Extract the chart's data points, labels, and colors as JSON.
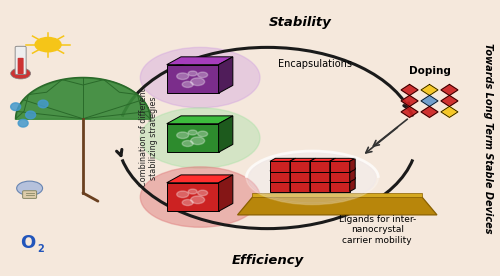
{
  "bg_color": "#f5e8dc",
  "title_text": "Towards Long Term Stable Devices",
  "combo_text": "Combination of different\nstabilizing strategies",
  "stability_text": "Stability",
  "efficiency_text": "Efficiency",
  "encapsulations_text": "Encapsulations",
  "doping_text": "Doping",
  "ligands_text": "Ligands for inter-\nnanocrystal\ncarrier mobility",
  "o2_text": "O",
  "o2_sub": "2",
  "arrow_color": "#1a1a1a",
  "purple_color": "#7b2d8b",
  "green_color": "#2d8b2d",
  "red_color": "#cc2222",
  "glow_purple": "#d0a0e0",
  "glow_green": "#a0e0a0",
  "glow_red": "#e08080",
  "platform_color": "#b8860b",
  "platform_light": "#d4a820",
  "platform_dark": "#8a6000"
}
